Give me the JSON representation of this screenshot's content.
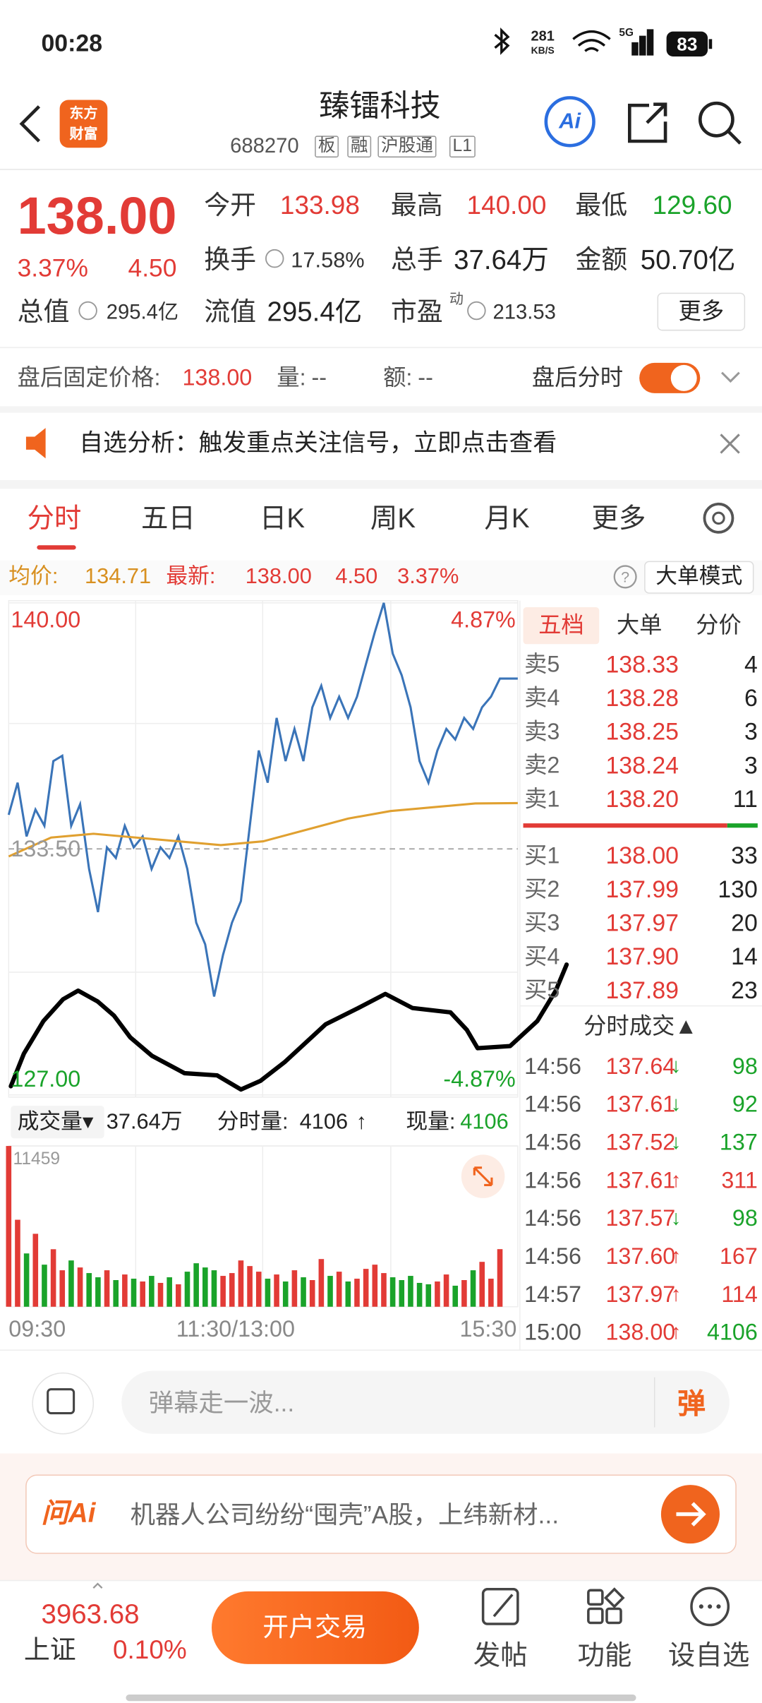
{
  "status": {
    "time": "00:28",
    "speed": "281",
    "speed_unit": "KB/S",
    "network": "5G",
    "battery": "83"
  },
  "header": {
    "logo": [
      "东方",
      "财富"
    ],
    "title": "臻镭科技",
    "code": "688270",
    "tags": [
      "板",
      "融",
      "沪股通",
      "L1"
    ],
    "ai": "Ai"
  },
  "quote": {
    "price": "138.00",
    "change_pct": "3.37%",
    "change": "4.50",
    "fields": [
      {
        "label": "今开",
        "value": "133.98"
      },
      {
        "label": "最高",
        "value": "140.00"
      },
      {
        "label": "最低",
        "value": "129.60"
      },
      {
        "label": "换手",
        "value": "17.58%"
      },
      {
        "label": "总手",
        "value": "37.64万"
      },
      {
        "label": "金额",
        "value": "50.70亿"
      },
      {
        "label": "总值",
        "value": "295.4亿"
      },
      {
        "label": "流值",
        "value": "295.4亿"
      },
      {
        "label": "市盈",
        "value": "213.53"
      }
    ],
    "pe_mark": "动",
    "more": "更多"
  },
  "after_hours": {
    "label": "盘后固定价格:",
    "price": "138.00",
    "vol_label": "量:",
    "vol": "--",
    "amt_label": "额:",
    "amt": "--",
    "toggle": "盘后分时"
  },
  "notice": {
    "text": "自选分析：触发重点关注信号，立即点击查看"
  },
  "tabs": {
    "items": [
      "分时",
      "五日",
      "日K",
      "周K",
      "月K",
      "更多"
    ]
  },
  "summary": {
    "avg_label": "均价:",
    "avg": "134.71",
    "latest_label": "最新:",
    "latest": "138.00",
    "change": "4.50",
    "pct": "3.37%",
    "help": "?",
    "mode": "大单模式"
  },
  "chart_data": [
    {
      "type": "line",
      "ylim": [
        127,
        140
      ],
      "yticks": [
        {
          "value": 127,
          "label": "127.00"
        },
        {
          "value": 133.5,
          "label": "133.50"
        },
        {
          "value": 140,
          "label": "140.00"
        }
      ],
      "y2lim": [
        -4.87,
        4.87
      ],
      "y2ticks": [
        {
          "value": -4.87,
          "label": "-4.87%"
        },
        {
          "value": 4.87,
          "label": "4.87%"
        }
      ],
      "series": [
        {
          "color": "#3a74b8",
          "values": [
            134.4,
            135.25,
            133.83,
            134.54,
            134.11,
            135.82,
            135.96,
            134.11,
            134.68,
            132.97,
            131.83,
            133.54,
            133.26,
            134.11,
            133.54,
            133.83,
            132.97,
            133.54,
            133.26,
            133.83,
            132.97,
            131.55,
            130.98,
            129.6,
            130.7,
            131.55,
            132.12,
            134.11,
            136.1,
            135.25,
            136.96,
            135.82,
            136.67,
            135.82,
            137.24,
            137.81,
            136.96,
            137.52,
            136.96,
            137.52,
            138.38,
            139.23,
            140.0,
            138.66,
            138.09,
            137.24,
            135.82,
            135.25,
            136.1,
            136.67,
            136.39,
            136.96,
            136.67,
            137.24,
            137.52,
            138.0,
            138.0,
            138.0
          ]
        },
        {
          "color": "#e0a030",
          "values": [
            133.3,
            133.8,
            133.9,
            133.8,
            133.7,
            133.6,
            133.7,
            134.0,
            134.3,
            134.5,
            134.6,
            134.7,
            134.71
          ]
        }
      ],
      "up_color": "#e23b36",
      "down_color": "#1aa32a"
    },
    {
      "type": "bar",
      "ylim": [
        0,
        11459
      ],
      "yticks": [
        11459
      ],
      "values": [
        11459,
        6200,
        3800,
        5200,
        3000,
        4100,
        2600,
        3300,
        2800,
        2400,
        2100,
        2600,
        1900,
        2300,
        2000,
        1800,
        2200,
        1700,
        2100,
        1600,
        2500,
        3100,
        2800,
        2600,
        2200,
        2400,
        3300,
        2900,
        2500,
        2000,
        2300,
        1800,
        2600,
        2100,
        1900,
        3400,
        2200,
        2500,
        1800,
        2000,
        2700,
        3000,
        2400,
        2100,
        1900,
        2200,
        1700,
        1600,
        1800,
        2300,
        1500,
        1900,
        2600,
        3200,
        2000,
        4106
      ],
      "up_color": "#e23b36",
      "down_color": "#1aa32a",
      "x_labels": [
        "09:30",
        "11:30/13:00",
        "15:30"
      ]
    }
  ],
  "volume_info": {
    "label": "成交量▾",
    "total": "37.64万",
    "tick_label": "分时量:",
    "tick_value": "4106",
    "tick_arrow": "↑",
    "now_label": "现量:",
    "now_value": "4106"
  },
  "order_book": {
    "tabs": [
      "五档",
      "大单",
      "分价"
    ],
    "asks": [
      {
        "label": "卖5",
        "price": "138.33",
        "volume": "4"
      },
      {
        "label": "卖4",
        "price": "138.28",
        "volume": "6"
      },
      {
        "label": "卖3",
        "price": "138.25",
        "volume": "3"
      },
      {
        "label": "卖2",
        "price": "138.24",
        "volume": "3"
      },
      {
        "label": "卖1",
        "price": "138.20",
        "volume": "11"
      }
    ],
    "bids": [
      {
        "label": "买1",
        "price": "138.00",
        "volume": "33"
      },
      {
        "label": "买2",
        "price": "137.99",
        "volume": "130"
      },
      {
        "label": "买3",
        "price": "137.97",
        "volume": "20"
      },
      {
        "label": "买4",
        "price": "137.90",
        "volume": "14"
      },
      {
        "label": "买5",
        "price": "137.89",
        "volume": "23"
      }
    ]
  },
  "trades": {
    "title": "分时成交▲",
    "rows": [
      {
        "time": "14:56",
        "price": "137.64",
        "arrow": "↓",
        "arrow_color": "#1aa32a",
        "volume": "98",
        "volume_color": "#1aa32a"
      },
      {
        "time": "14:56",
        "price": "137.61",
        "arrow": "↓",
        "arrow_color": "#1aa32a",
        "volume": "92",
        "volume_color": "#1aa32a"
      },
      {
        "time": "14:56",
        "price": "137.52",
        "arrow": "↓",
        "arrow_color": "#1aa32a",
        "volume": "137",
        "volume_color": "#1aa32a"
      },
      {
        "time": "14:56",
        "price": "137.61",
        "arrow": "↑",
        "arrow_color": "#e23b36",
        "volume": "311",
        "volume_color": "#e23b36"
      },
      {
        "time": "14:56",
        "price": "137.57",
        "arrow": "↓",
        "arrow_color": "#1aa32a",
        "volume": "98",
        "volume_color": "#1aa32a"
      },
      {
        "time": "14:56",
        "price": "137.60",
        "arrow": "↑",
        "arrow_color": "#e23b36",
        "volume": "167",
        "volume_color": "#e23b36"
      },
      {
        "time": "14:57",
        "price": "137.97",
        "arrow": "↑",
        "arrow_color": "#e23b36",
        "volume": "114",
        "volume_color": "#e23b36"
      },
      {
        "time": "15:00",
        "price": "138.00",
        "arrow": "↑",
        "arrow_color": "#e23b36",
        "volume": "4106",
        "volume_color": "#1aa32a"
      }
    ]
  },
  "comment": {
    "placeholder": "弹幕走一波...",
    "button": "弹"
  },
  "ai": {
    "label": "问Ai",
    "text": "机器人公司纷纷“囤壳”A股，上纬新材..."
  },
  "footer": {
    "index_value": "3963.68",
    "index_name": "上证",
    "index_pct": "0.10%",
    "trade": "开户交易",
    "nav": [
      "发帖",
      "功能",
      "设自选"
    ]
  }
}
